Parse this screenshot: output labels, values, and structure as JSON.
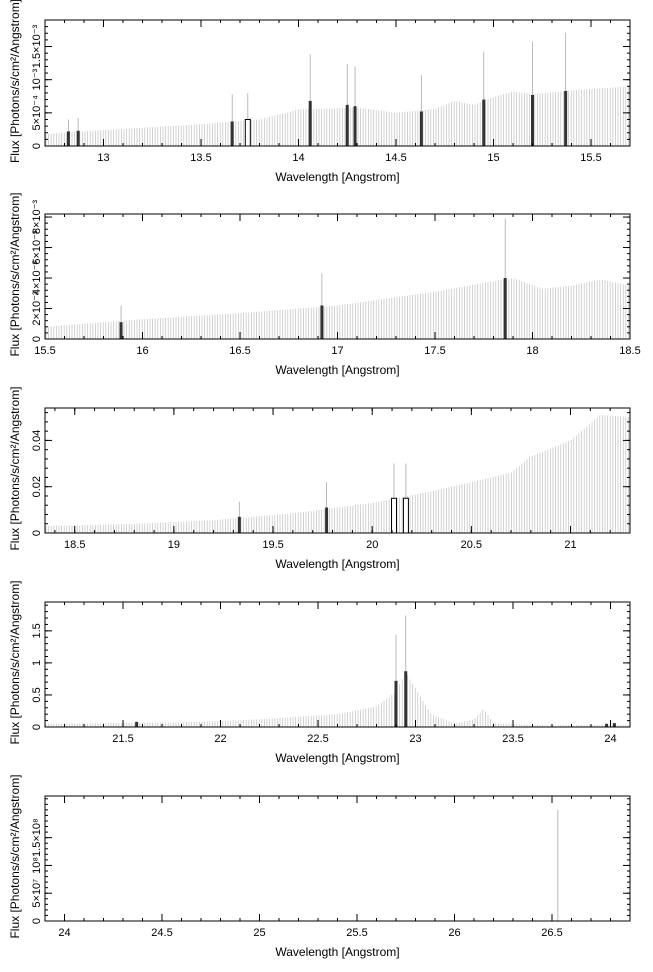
{
  "chart_data": [
    {
      "type": "bar",
      "xlabel": "Wavelength [Angstrom]",
      "ylabel": "Flux [Photons/s/cm²/Angstrom]",
      "xlim": [
        12.7,
        15.7
      ],
      "ylim": [
        0,
        0.0019
      ],
      "x_ticks": [
        13,
        13.5,
        14,
        14.5,
        15,
        15.5
      ],
      "x_tick_labels": [
        "13",
        "13.5",
        "14",
        "14.5",
        "15",
        "15.5"
      ],
      "y_ticks": [
        0,
        0.0005,
        0.001,
        0.0015
      ],
      "y_tick_labels": [
        "0",
        "5×10⁻⁴",
        "10⁻³",
        "1.5×10⁻³"
      ],
      "continuum": [
        [
          12.7,
          0.00018
        ],
        [
          13.0,
          0.00024
        ],
        [
          13.5,
          0.00033
        ],
        [
          13.8,
          0.0004
        ],
        [
          14.0,
          0.00055
        ],
        [
          14.3,
          0.00058
        ],
        [
          14.5,
          0.0005
        ],
        [
          14.7,
          0.00056
        ],
        [
          14.8,
          0.00068
        ],
        [
          14.9,
          0.00062
        ],
        [
          15.0,
          0.00074
        ],
        [
          15.1,
          0.00082
        ],
        [
          15.2,
          0.00078
        ],
        [
          15.4,
          0.00084
        ],
        [
          15.7,
          0.0009
        ]
      ],
      "lines": [
        {
          "x": 12.82,
          "y": 0.00022,
          "err": 0.0004,
          "style": "filled"
        },
        {
          "x": 12.87,
          "y": 0.00023,
          "err": 0.00042,
          "style": "filled"
        },
        {
          "x": 13.66,
          "y": 0.00037,
          "err": 0.00078,
          "style": "filled"
        },
        {
          "x": 13.74,
          "y": 0.0004,
          "err": 0.0008,
          "style": "open"
        },
        {
          "x": 14.06,
          "y": 0.00068,
          "err": 0.00138,
          "style": "filled"
        },
        {
          "x": 14.25,
          "y": 0.00062,
          "err": 0.00124,
          "style": "filled"
        },
        {
          "x": 14.29,
          "y": 0.0006,
          "err": 0.0012,
          "style": "filled"
        },
        {
          "x": 14.63,
          "y": 0.00052,
          "err": 0.00107,
          "style": "filled"
        },
        {
          "x": 14.95,
          "y": 0.0007,
          "err": 0.00142,
          "style": "filled"
        },
        {
          "x": 15.2,
          "y": 0.00077,
          "err": 0.00158,
          "style": "filled"
        },
        {
          "x": 15.37,
          "y": 0.00083,
          "err": 0.00171,
          "style": "filled"
        }
      ]
    },
    {
      "type": "bar",
      "xlabel": "Wavelength [Angstrom]",
      "ylabel": "Flux [Photons/s/cm²/Angstrom]",
      "xlim": [
        15.5,
        18.5
      ],
      "ylim": [
        0,
        0.0082
      ],
      "x_ticks": [
        15.5,
        16,
        16.5,
        17,
        17.5,
        18,
        18.5
      ],
      "x_tick_labels": [
        "15.5",
        "16",
        "16.5",
        "17",
        "17.5",
        "18",
        "18.5"
      ],
      "y_ticks": [
        0,
        0.002,
        0.004,
        0.006,
        0.008
      ],
      "y_tick_labels": [
        "0",
        "2×10⁻³",
        "4×10⁻³",
        "6×10⁻³",
        "8×10⁻³"
      ],
      "continuum": [
        [
          15.5,
          0.0008
        ],
        [
          16.0,
          0.0013
        ],
        [
          16.5,
          0.0017
        ],
        [
          17.0,
          0.0022
        ],
        [
          17.5,
          0.0031
        ],
        [
          17.8,
          0.0038
        ],
        [
          17.9,
          0.004
        ],
        [
          18.05,
          0.0033
        ],
        [
          18.2,
          0.0035
        ],
        [
          18.35,
          0.0039
        ],
        [
          18.5,
          0.0035
        ]
      ],
      "lines": [
        {
          "x": 15.89,
          "y": 0.0011,
          "err": 0.0022,
          "style": "filled"
        },
        {
          "x": 16.92,
          "y": 0.0022,
          "err": 0.0043,
          "style": "filled"
        },
        {
          "x": 17.86,
          "y": 0.004,
          "err": 0.0079,
          "style": "filled"
        }
      ]
    },
    {
      "type": "bar",
      "xlabel": "Wavelength [Angstrom]",
      "ylabel": "Flux [Photons/s/cm²/Angstrom]",
      "xlim": [
        18.35,
        21.3
      ],
      "ylim": [
        0,
        0.054
      ],
      "x_ticks": [
        18.5,
        19,
        19.5,
        20,
        20.5,
        21
      ],
      "x_tick_labels": [
        "18.5",
        "19",
        "19.5",
        "20",
        "20.5",
        "21"
      ],
      "y_ticks": [
        0,
        0.02,
        0.04
      ],
      "y_tick_labels": [
        "0",
        "0.02",
        "0.04"
      ],
      "continuum": [
        [
          18.35,
          0.003
        ],
        [
          18.8,
          0.004
        ],
        [
          19.2,
          0.0055
        ],
        [
          19.6,
          0.0085
        ],
        [
          20.0,
          0.013
        ],
        [
          20.3,
          0.018
        ],
        [
          20.5,
          0.022
        ],
        [
          20.7,
          0.026
        ],
        [
          20.8,
          0.033
        ],
        [
          21.0,
          0.04
        ],
        [
          21.15,
          0.051
        ],
        [
          21.3,
          0.05
        ]
      ],
      "lines": [
        {
          "x": 19.33,
          "y": 0.007,
          "err": 0.0135,
          "style": "filled"
        },
        {
          "x": 19.77,
          "y": 0.011,
          "err": 0.022,
          "style": "filled"
        },
        {
          "x": 20.11,
          "y": 0.015,
          "err": 0.03,
          "style": "open"
        },
        {
          "x": 20.17,
          "y": 0.015,
          "err": 0.03,
          "style": "open"
        }
      ]
    },
    {
      "type": "bar",
      "xlabel": "Wavelength [Angstrom]",
      "ylabel": "Flux [Photons/s/cm²/Angstrom]",
      "xlim": [
        21.1,
        24.1
      ],
      "ylim": [
        0,
        1.95
      ],
      "x_ticks": [
        21.5,
        22,
        22.5,
        23,
        23.5,
        24
      ],
      "x_tick_labels": [
        "21.5",
        "22",
        "22.5",
        "23",
        "23.5",
        "24"
      ],
      "y_ticks": [
        0,
        0.5,
        1,
        1.5
      ],
      "y_tick_labels": [
        "0",
        "0.5",
        "1",
        "1.5"
      ],
      "continuum": [
        [
          21.1,
          0.05
        ],
        [
          21.8,
          0.07
        ],
        [
          22.2,
          0.12
        ],
        [
          22.6,
          0.2
        ],
        [
          22.8,
          0.32
        ],
        [
          22.9,
          0.55
        ],
        [
          22.95,
          0.85
        ],
        [
          23.0,
          0.6
        ],
        [
          23.08,
          0.2
        ],
        [
          23.2,
          0.05
        ],
        [
          23.3,
          0.12
        ],
        [
          23.35,
          0.28
        ],
        [
          23.4,
          0.06
        ],
        [
          23.6,
          0.03
        ],
        [
          24.1,
          0.03
        ]
      ],
      "lines": [
        {
          "x": 21.57,
          "y": 0.08,
          "err": 0.08,
          "style": "filled"
        },
        {
          "x": 22.9,
          "y": 0.72,
          "err": 1.44,
          "style": "filled"
        },
        {
          "x": 22.95,
          "y": 0.87,
          "err": 1.74,
          "style": "filled"
        },
        {
          "x": 23.98,
          "y": 0.05,
          "err": 0.05,
          "style": "filled"
        },
        {
          "x": 24.02,
          "y": 0.06,
          "err": 0.06,
          "style": "filled"
        }
      ]
    },
    {
      "type": "bar",
      "xlabel": "Wavelength [Angstrom]",
      "ylabel": "Flux [Photons/s/cm²/Angstrom]",
      "xlim": [
        23.9,
        26.9
      ],
      "ylim": [
        0,
        225000000
      ],
      "x_ticks": [
        24,
        24.5,
        25,
        25.5,
        26,
        26.5
      ],
      "x_tick_labels": [
        "24",
        "24.5",
        "25",
        "25.5",
        "26",
        "26.5"
      ],
      "y_ticks": [
        0,
        50000000,
        100000000,
        150000000
      ],
      "y_tick_labels": [
        "0",
        "5×10⁷",
        "10⁸",
        "1.5×10⁸"
      ],
      "continuum": [],
      "lines": [
        {
          "x": 26.53,
          "y": 0,
          "err": 200000000,
          "style": "spike"
        }
      ]
    }
  ]
}
